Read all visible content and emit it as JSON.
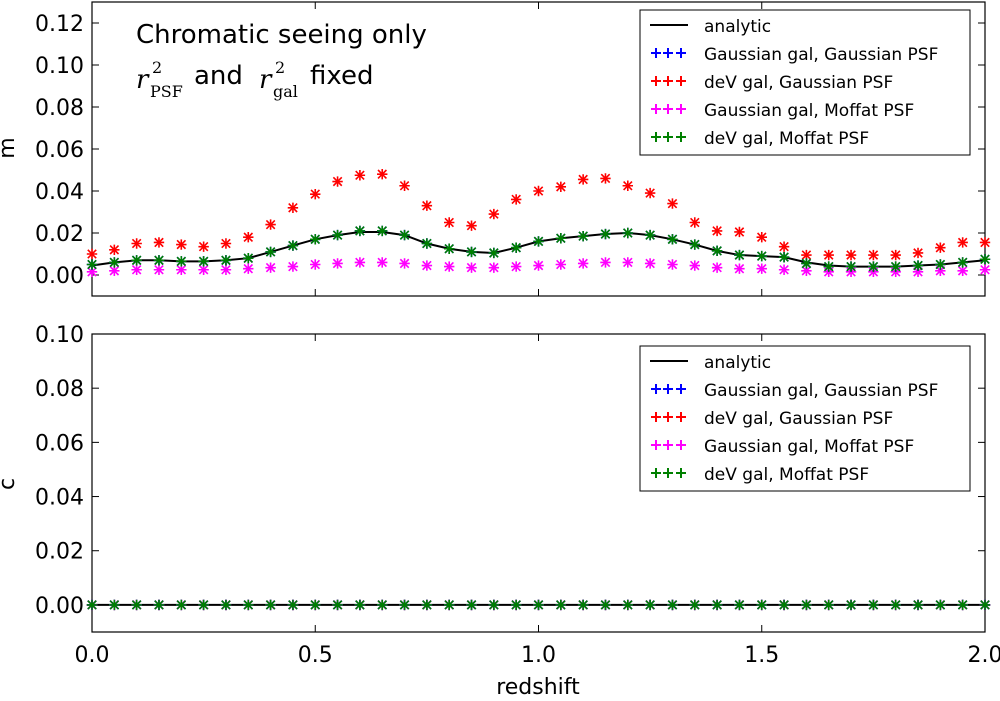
{
  "chart_data": [
    {
      "type": "scatter",
      "id": "top",
      "ylabel": "m",
      "xlabel": "",
      "xlim": [
        0.0,
        2.0
      ],
      "ylim": [
        -0.01,
        0.13
      ],
      "yticks": [
        0.0,
        0.02,
        0.04,
        0.06,
        0.08,
        0.1,
        0.12
      ],
      "ytick_labels": [
        "0.00",
        "0.02",
        "0.04",
        "0.06",
        "0.08",
        "0.10",
        "0.12"
      ],
      "annotation": {
        "line1": "Chromatic seeing only",
        "r": "r",
        "sup": "2",
        "sub_psf": "PSF",
        "and": "and",
        "sub_gal": "gal",
        "fixed": "fixed"
      },
      "legend": {
        "placement": "top-right",
        "entries": [
          {
            "label": "analytic",
            "marker": "line",
            "color": "#000000"
          },
          {
            "label": "Gaussian gal, Gaussian PSF",
            "marker": "+++",
            "color": "#0000ff"
          },
          {
            "label": "deV gal, Gaussian PSF",
            "marker": "+++",
            "color": "#ff0000"
          },
          {
            "label": "Gaussian gal, Moffat PSF",
            "marker": "+++",
            "color": "#ff00ff"
          },
          {
            "label": "deV gal, Moffat PSF",
            "marker": "+++",
            "color": "#008000"
          }
        ]
      },
      "x": [
        0.0,
        0.05,
        0.1,
        0.15,
        0.2,
        0.25,
        0.3,
        0.35,
        0.4,
        0.45,
        0.5,
        0.55,
        0.6,
        0.65,
        0.7,
        0.75,
        0.8,
        0.85,
        0.9,
        0.95,
        1.0,
        1.05,
        1.1,
        1.15,
        1.2,
        1.25,
        1.3,
        1.35,
        1.4,
        1.45,
        1.5,
        1.55,
        1.6,
        1.65,
        1.7,
        1.75,
        1.8,
        1.85,
        1.9,
        1.95,
        2.0
      ],
      "analytic_x": [
        0.0,
        0.05,
        0.1,
        0.15,
        0.2,
        0.25,
        0.3,
        0.35,
        0.4,
        0.45,
        0.5,
        0.55,
        0.6,
        0.65,
        0.7,
        0.75,
        0.8,
        0.85,
        0.9,
        0.95,
        1.0,
        1.05,
        1.1,
        1.15,
        1.2,
        1.25,
        1.3,
        1.35,
        1.4,
        1.45,
        1.5,
        1.55,
        1.6,
        1.65,
        1.7,
        1.75,
        1.8,
        1.85,
        1.9,
        1.95,
        2.0
      ],
      "analytic_y": [
        0.0045,
        0.006,
        0.007,
        0.007,
        0.0065,
        0.0065,
        0.007,
        0.008,
        0.011,
        0.014,
        0.017,
        0.019,
        0.0205,
        0.0205,
        0.019,
        0.015,
        0.0125,
        0.011,
        0.0105,
        0.013,
        0.016,
        0.0175,
        0.0185,
        0.0195,
        0.02,
        0.019,
        0.017,
        0.0145,
        0.0115,
        0.0095,
        0.009,
        0.0085,
        0.006,
        0.0045,
        0.004,
        0.004,
        0.004,
        0.0045,
        0.005,
        0.006,
        0.007
      ],
      "series": [
        {
          "name": "Gaussian gal, Gaussian PSF",
          "color": "#0000ff",
          "values": [
            0.005,
            0.006,
            0.007,
            0.007,
            0.0065,
            0.0065,
            0.007,
            0.008,
            0.011,
            0.014,
            0.017,
            0.019,
            0.021,
            0.021,
            0.019,
            0.015,
            0.0125,
            0.011,
            0.0105,
            0.013,
            0.016,
            0.0175,
            0.0185,
            0.0195,
            0.02,
            0.019,
            0.017,
            0.0145,
            0.0115,
            0.0095,
            0.009,
            0.0085,
            0.0055,
            0.004,
            0.004,
            0.004,
            0.004,
            0.0045,
            0.005,
            0.006,
            0.0075
          ]
        },
        {
          "name": "deV gal, Gaussian PSF",
          "color": "#ff0000",
          "values": [
            0.01,
            0.012,
            0.015,
            0.0155,
            0.0145,
            0.0135,
            0.015,
            0.018,
            0.024,
            0.032,
            0.0385,
            0.0445,
            0.0475,
            0.048,
            0.0425,
            0.033,
            0.025,
            0.0235,
            0.029,
            0.036,
            0.04,
            0.042,
            0.0455,
            0.046,
            0.0425,
            0.039,
            0.034,
            0.025,
            0.021,
            0.0205,
            0.018,
            0.0135,
            0.0095,
            0.0095,
            0.0095,
            0.0095,
            0.0095,
            0.0105,
            0.013,
            0.0155,
            0.0155
          ]
        },
        {
          "name": "Gaussian gal, Moffat PSF",
          "color": "#ff00ff",
          "values": [
            0.0015,
            0.002,
            0.0025,
            0.0025,
            0.0025,
            0.0025,
            0.0025,
            0.003,
            0.0035,
            0.004,
            0.005,
            0.0055,
            0.006,
            0.006,
            0.0055,
            0.0045,
            0.004,
            0.0035,
            0.0035,
            0.004,
            0.0045,
            0.005,
            0.0055,
            0.006,
            0.006,
            0.0055,
            0.005,
            0.0045,
            0.0035,
            0.003,
            0.003,
            0.0025,
            0.002,
            0.0015,
            0.0015,
            0.0015,
            0.0015,
            0.0015,
            0.002,
            0.002,
            0.0025
          ]
        },
        {
          "name": "deV gal, Moffat PSF",
          "color": "#008000",
          "values": [
            0.005,
            0.006,
            0.007,
            0.007,
            0.0065,
            0.0065,
            0.007,
            0.008,
            0.011,
            0.014,
            0.017,
            0.019,
            0.021,
            0.021,
            0.019,
            0.015,
            0.0125,
            0.011,
            0.0105,
            0.013,
            0.016,
            0.0175,
            0.0185,
            0.0195,
            0.02,
            0.019,
            0.017,
            0.0145,
            0.0115,
            0.0095,
            0.009,
            0.0085,
            0.0055,
            0.004,
            0.004,
            0.004,
            0.004,
            0.0045,
            0.005,
            0.006,
            0.0075
          ]
        }
      ]
    },
    {
      "type": "scatter",
      "id": "bottom",
      "ylabel": "c",
      "xlabel": "redshift",
      "xlim": [
        0.0,
        2.0
      ],
      "ylim": [
        -0.01,
        0.1
      ],
      "xticks": [
        0.0,
        0.5,
        1.0,
        1.5,
        2.0
      ],
      "xtick_labels": [
        "0.0",
        "0.5",
        "1.0",
        "1.5",
        "2.0"
      ],
      "yticks": [
        0.0,
        0.02,
        0.04,
        0.06,
        0.08,
        0.1
      ],
      "ytick_labels": [
        "0.00",
        "0.02",
        "0.04",
        "0.06",
        "0.08",
        "0.10"
      ],
      "legend": {
        "placement": "top-right",
        "entries": [
          {
            "label": "analytic",
            "marker": "line",
            "color": "#000000"
          },
          {
            "label": "Gaussian gal, Gaussian PSF",
            "marker": "+++",
            "color": "#0000ff"
          },
          {
            "label": "deV gal, Gaussian PSF",
            "marker": "+++",
            "color": "#ff0000"
          },
          {
            "label": "Gaussian gal, Moffat PSF",
            "marker": "+++",
            "color": "#ff00ff"
          },
          {
            "label": "deV gal, Moffat PSF",
            "marker": "+++",
            "color": "#008000"
          }
        ]
      },
      "x": [
        0.0,
        0.05,
        0.1,
        0.15,
        0.2,
        0.25,
        0.3,
        0.35,
        0.4,
        0.45,
        0.5,
        0.55,
        0.6,
        0.65,
        0.7,
        0.75,
        0.8,
        0.85,
        0.9,
        0.95,
        1.0,
        1.05,
        1.1,
        1.15,
        1.2,
        1.25,
        1.3,
        1.35,
        1.4,
        1.45,
        1.5,
        1.55,
        1.6,
        1.65,
        1.7,
        1.75,
        1.8,
        1.85,
        1.9,
        1.95,
        2.0
      ],
      "analytic_x": [
        0.0,
        2.0
      ],
      "analytic_y": [
        0.0,
        0.0
      ],
      "series": [
        {
          "name": "Gaussian gal, Gaussian PSF",
          "color": "#0000ff",
          "constant": 0.0
        },
        {
          "name": "deV gal, Gaussian PSF",
          "color": "#ff0000",
          "constant": 0.0
        },
        {
          "name": "Gaussian gal, Moffat PSF",
          "color": "#ff00ff",
          "constant": 0.0
        },
        {
          "name": "deV gal, Moffat PSF",
          "color": "#008000",
          "constant": 0.0
        }
      ]
    }
  ]
}
